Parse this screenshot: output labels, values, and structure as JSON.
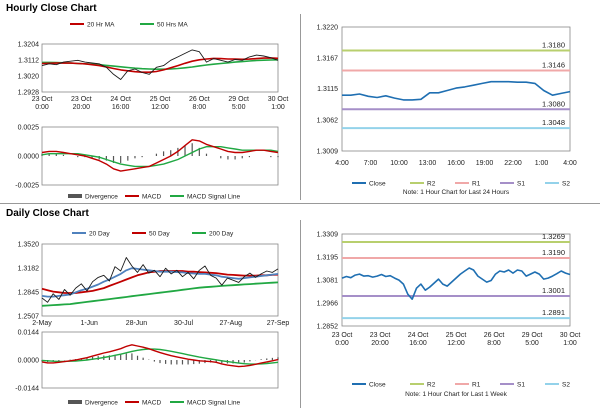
{
  "sections": {
    "hourly_title": "Hourly Close Chart",
    "daily_title": "Daily Close Chart"
  },
  "colors": {
    "price": "#1a1a1a",
    "ma_short": "#c00000",
    "ma_long": "#21a843",
    "ma_mid_blue": "#4f81bd",
    "macd": "#c00000",
    "signal": "#21a843",
    "divergence": "#555555",
    "pivot_close": "#1f6fb2",
    "pivot_r2": "#b8cf6e",
    "pivot_r1": "#f0a8a8",
    "pivot_s1": "#a58fc8",
    "pivot_s2": "#93d2ea"
  },
  "chart_data": [
    {
      "id": "hourly-price",
      "type": "line",
      "legend": [
        "20 Hr MA",
        "50 Hrs MA"
      ],
      "y_ticks": [
        "1.3204",
        "1.3112",
        "1.3020",
        "1.2928"
      ],
      "ylim": [
        1.2928,
        1.3204
      ],
      "x_ticks": [
        [
          "23 Oct",
          "0:00"
        ],
        [
          "23 Oct",
          "20:00"
        ],
        [
          "24 Oct",
          "16:00"
        ],
        [
          "25 Oct",
          "12:00"
        ],
        [
          "26 Oct",
          "8:00"
        ],
        [
          "29 Oct",
          "5:00"
        ],
        [
          "30 Oct",
          "1:00"
        ]
      ],
      "series": [
        {
          "name": "Close",
          "values": [
            1.308,
            1.309,
            1.3085,
            1.31,
            1.3105,
            1.311,
            1.31,
            1.3095,
            1.309,
            1.307,
            1.303,
            1.3,
            1.305,
            1.306,
            1.304,
            1.303,
            1.307,
            1.308,
            1.311,
            1.313,
            1.315,
            1.317,
            1.316,
            1.31,
            1.312,
            1.311,
            1.31,
            1.3115,
            1.311,
            1.313,
            1.314,
            1.3135,
            1.3125,
            1.311
          ]
        },
        {
          "name": "20 Hr MA",
          "values": [
            1.3092,
            1.3093,
            1.3094,
            1.3095,
            1.3094,
            1.3092,
            1.309,
            1.3085,
            1.308,
            1.3072,
            1.3063,
            1.3055,
            1.305,
            1.3045,
            1.3042,
            1.3042,
            1.3046,
            1.3055,
            1.3067,
            1.308,
            1.3093,
            1.3105,
            1.3113,
            1.3118,
            1.3121,
            1.312,
            1.3118,
            1.3117,
            1.3116,
            1.3117,
            1.312,
            1.3123,
            1.3124,
            1.3122
          ]
        },
        {
          "name": "50 Hrs MA",
          "values": [
            1.3098,
            1.3098,
            1.3097,
            1.3096,
            1.3094,
            1.3092,
            1.309,
            1.3088,
            1.3085,
            1.3081,
            1.3077,
            1.3073,
            1.3069,
            1.3065,
            1.3062,
            1.306,
            1.3059,
            1.3059,
            1.306,
            1.3063,
            1.3067,
            1.3072,
            1.3078,
            1.3083,
            1.3088,
            1.3092,
            1.3096,
            1.31,
            1.3103,
            1.3106,
            1.3109,
            1.3111,
            1.3112,
            1.3113
          ]
        }
      ]
    },
    {
      "id": "hourly-macd",
      "type": "line",
      "y_ticks": [
        "0.0025",
        "0.0000",
        "-0.0025"
      ],
      "ylim": [
        -0.0025,
        0.0025
      ],
      "legend": [
        "Divergence",
        "MACD",
        "MACD Signal Line"
      ],
      "series": [
        {
          "name": "MACD",
          "values": [
            0.0003,
            0.0004,
            0.0004,
            0.0003,
            0.0002,
            0.0001,
            0.0,
            -0.0002,
            -0.0004,
            -0.0007,
            -0.0011,
            -0.0013,
            -0.0012,
            -0.0011,
            -0.001,
            -0.0009,
            -0.0006,
            -0.0003,
            0.0,
            0.0004,
            0.0009,
            0.0014,
            0.0013,
            0.001,
            0.0008,
            0.0006,
            0.0004,
            0.0003,
            0.0003,
            0.0004,
            0.0005,
            0.0005,
            0.0004,
            0.0003
          ]
        },
        {
          "name": "MACD Signal Line",
          "values": [
            0.0001,
            0.0002,
            0.0002,
            0.0002,
            0.0002,
            0.0002,
            0.0001,
            0.0,
            -0.0001,
            -0.0003,
            -0.0005,
            -0.0007,
            -0.0008,
            -0.0009,
            -0.0009,
            -0.0009,
            -0.0008,
            -0.0007,
            -0.0005,
            -0.0003,
            0.0,
            0.0003,
            0.0006,
            0.0008,
            0.0008,
            0.0008,
            0.0007,
            0.0006,
            0.0005,
            0.0005,
            0.0005,
            0.0005,
            0.0005,
            0.0004
          ]
        },
        {
          "name": "Divergence",
          "values": [
            0.0002,
            0.0002,
            0.0002,
            0.0001,
            0.0,
            -0.0001,
            -0.0001,
            -0.0002,
            -0.0003,
            -0.0004,
            -0.0006,
            -0.0006,
            -0.0004,
            -0.0002,
            -0.0001,
            0.0,
            0.0002,
            0.0004,
            0.0005,
            0.0007,
            0.0009,
            0.0011,
            0.0007,
            0.0002,
            0.0,
            -0.0002,
            -0.0003,
            -0.0003,
            -0.0002,
            -0.0001,
            0.0,
            0.0,
            -0.0001,
            -0.0001
          ]
        }
      ]
    },
    {
      "id": "hourly-pivot",
      "type": "line",
      "y_ticks": [
        "1.3220",
        "1.3167",
        "1.3115",
        "1.3062",
        "1.3009"
      ],
      "ylim": [
        1.3009,
        1.322
      ],
      "x_ticks": [
        "4:00",
        "7:00",
        "10:00",
        "13:00",
        "16:00",
        "19:00",
        "22:00",
        "1:00",
        "4:00"
      ],
      "levels": [
        {
          "name": "R2",
          "value": 1.318,
          "label": "1.3180"
        },
        {
          "name": "R1",
          "value": 1.3146,
          "label": "1.3146"
        },
        {
          "name": "S1",
          "value": 1.308,
          "label": "1.3080"
        },
        {
          "name": "S2",
          "value": 1.3048,
          "label": "1.3048"
        }
      ],
      "series": [
        {
          "name": "Close",
          "values": [
            1.3104,
            1.3104,
            1.3106,
            1.3102,
            1.31,
            1.3103,
            1.3099,
            1.3096,
            1.3096,
            1.3097,
            1.3108,
            1.3108,
            1.3112,
            1.3116,
            1.3118,
            1.3121,
            1.3124,
            1.3127,
            1.3127,
            1.3127,
            1.3126,
            1.3126,
            1.3124,
            1.3112,
            1.3104,
            1.3107,
            1.311
          ]
        }
      ],
      "legend": [
        "Close",
        "R2",
        "R1",
        "S1",
        "S2"
      ],
      "note": "Note: 1 Hour Chart for Last 24 Hours"
    },
    {
      "id": "daily-price",
      "type": "line",
      "legend": [
        "20 Day",
        "50 Day",
        "200 Day"
      ],
      "y_ticks": [
        "1.3520",
        "1.3182",
        "1.2845",
        "1.2507"
      ],
      "ylim": [
        1.2507,
        1.352
      ],
      "x_ticks": [
        "2-May",
        "1-Jun",
        "28-Jun",
        "30-Jul",
        "27-Aug",
        "27-Sep"
      ],
      "series": [
        {
          "name": "Close",
          "values": [
            1.276,
            1.27,
            1.282,
            1.274,
            1.288,
            1.28,
            1.29,
            1.296,
            1.286,
            1.299,
            1.305,
            1.308,
            1.3,
            1.32,
            1.314,
            1.333,
            1.321,
            1.312,
            1.323,
            1.311,
            1.315,
            1.306,
            1.318,
            1.31,
            1.315,
            1.306,
            1.312,
            1.303,
            1.315,
            1.321,
            1.308,
            1.304,
            1.294,
            1.304,
            1.301,
            1.298,
            1.306,
            1.311,
            1.305,
            1.31,
            1.314,
            1.312,
            1.317
          ]
        },
        {
          "name": "20 Day",
          "values": [
            1.279,
            1.278,
            1.278,
            1.279,
            1.28,
            1.281,
            1.284,
            1.287,
            1.289,
            1.292,
            1.295,
            1.299,
            1.302,
            1.306,
            1.31,
            1.315,
            1.318,
            1.317,
            1.316,
            1.315,
            1.314,
            1.313,
            1.313,
            1.313,
            1.3125,
            1.312,
            1.311,
            1.3105,
            1.31,
            1.31,
            1.309,
            1.308,
            1.306,
            1.305,
            1.304,
            1.303,
            1.304,
            1.305,
            1.306,
            1.307,
            1.308,
            1.309,
            1.31
          ]
        },
        {
          "name": "50 Day",
          "values": [
            1.289,
            1.287,
            1.285,
            1.284,
            1.283,
            1.283,
            1.283,
            1.284,
            1.285,
            1.286,
            1.288,
            1.29,
            1.293,
            1.296,
            1.299,
            1.302,
            1.305,
            1.308,
            1.31,
            1.312,
            1.313,
            1.314,
            1.314,
            1.314,
            1.314,
            1.314,
            1.313,
            1.313,
            1.3125,
            1.312,
            1.3115,
            1.311,
            1.31,
            1.309,
            1.3085,
            1.308,
            1.3075,
            1.3075,
            1.3075,
            1.308,
            1.308,
            1.3085,
            1.309
          ]
        },
        {
          "name": "200 Day",
          "values": [
            1.265,
            1.2655,
            1.266,
            1.2665,
            1.267,
            1.2675,
            1.2685,
            1.2695,
            1.2705,
            1.2715,
            1.2725,
            1.2735,
            1.2745,
            1.2755,
            1.2765,
            1.2775,
            1.2785,
            1.2795,
            1.2805,
            1.2815,
            1.2825,
            1.2835,
            1.2845,
            1.2855,
            1.2865,
            1.2875,
            1.2885,
            1.2895,
            1.2905,
            1.2912,
            1.2918,
            1.2924,
            1.293,
            1.2936,
            1.2941,
            1.2946,
            1.2951,
            1.2956,
            1.2961,
            1.2966,
            1.2971,
            1.2976,
            1.298
          ]
        }
      ]
    },
    {
      "id": "daily-macd",
      "type": "line",
      "y_ticks": [
        "0.0144",
        "0.0000",
        "-0.0144"
      ],
      "ylim": [
        -0.0144,
        0.0144
      ],
      "legend": [
        "Divergence",
        "MACD",
        "MACD Signal Line"
      ],
      "series": [
        {
          "name": "MACD",
          "values": [
            -0.001,
            -0.0015,
            -0.0015,
            -0.0012,
            -0.0008,
            -0.0004,
            0.0,
            0.0006,
            0.0012,
            0.002,
            0.0028,
            0.0036,
            0.0042,
            0.005,
            0.0058,
            0.007,
            0.0078,
            0.0072,
            0.0066,
            0.0058,
            0.0048,
            0.0038,
            0.003,
            0.0022,
            0.0016,
            0.001,
            0.0004,
            0.0,
            -0.0004,
            -0.0006,
            -0.0008,
            -0.0012,
            -0.002,
            -0.0026,
            -0.003,
            -0.0034,
            -0.0032,
            -0.0028,
            -0.0022,
            -0.0016,
            -0.001,
            -0.0004,
            0.0002
          ]
        },
        {
          "name": "MACD Signal Line",
          "values": [
            -0.0002,
            -0.0004,
            -0.0006,
            -0.0007,
            -0.0007,
            -0.0006,
            -0.0005,
            -0.0003,
            0.0,
            0.0004,
            0.0008,
            0.0013,
            0.0018,
            0.0024,
            0.003,
            0.0037,
            0.0044,
            0.005,
            0.0054,
            0.0056,
            0.0056,
            0.0054,
            0.005,
            0.0045,
            0.0039,
            0.0033,
            0.0027,
            0.0021,
            0.0015,
            0.001,
            0.0005,
            0.0001,
            -0.0004,
            -0.0008,
            -0.0012,
            -0.0016,
            -0.0019,
            -0.0021,
            -0.0021,
            -0.002,
            -0.0018,
            -0.0015,
            -0.0012
          ]
        },
        {
          "name": "Divergence",
          "values": [
            -0.0008,
            -0.0011,
            -0.0009,
            -0.0005,
            -0.0001,
            0.0002,
            0.0005,
            0.0009,
            0.0012,
            0.0016,
            0.002,
            0.0023,
            0.0024,
            0.0026,
            0.0028,
            0.0033,
            0.0034,
            0.0022,
            0.0012,
            0.0002,
            -0.0008,
            -0.0016,
            -0.002,
            -0.0023,
            -0.0023,
            -0.0023,
            -0.0023,
            -0.0021,
            -0.0019,
            -0.0016,
            -0.0013,
            -0.0013,
            -0.0016,
            -0.0018,
            -0.0018,
            -0.0018,
            -0.0013,
            -0.0007,
            -0.0001,
            0.0004,
            0.0008,
            0.0011,
            0.0014
          ]
        }
      ]
    },
    {
      "id": "daily-pivot",
      "type": "line",
      "y_ticks": [
        "1.3309",
        "1.3195",
        "1.3081",
        "1.2966",
        "1.2852"
      ],
      "ylim": [
        1.2852,
        1.3309
      ],
      "x_ticks": [
        [
          "23 Oct",
          "0:00"
        ],
        [
          "23 Oct",
          "20:00"
        ],
        [
          "24 Oct",
          "16:00"
        ],
        [
          "25 Oct",
          "12:00"
        ],
        [
          "26 Oct",
          "8:00"
        ],
        [
          "29 Oct",
          "5:00"
        ],
        [
          "30 Oct",
          "1:00"
        ]
      ],
      "levels": [
        {
          "name": "R2",
          "value": 1.3269,
          "label": "1.3269"
        },
        {
          "name": "R1",
          "value": 1.319,
          "label": "1.3190"
        },
        {
          "name": "S1",
          "value": 1.3001,
          "label": "1.3001"
        },
        {
          "name": "S2",
          "value": 1.2891,
          "label": "1.2891"
        }
      ],
      "series": [
        {
          "name": "Close",
          "values": [
            1.309,
            1.3098,
            1.3092,
            1.3105,
            1.311,
            1.31,
            1.3102,
            1.3095,
            1.31,
            1.3108,
            1.3098,
            1.3102,
            1.309,
            1.308,
            1.306,
            1.301,
            1.2985,
            1.304,
            1.306,
            1.303,
            1.3045,
            1.3065,
            1.3085,
            1.306,
            1.305,
            1.307,
            1.309,
            1.311,
            1.3125,
            1.314,
            1.313,
            1.31,
            1.3085,
            1.307,
            1.3078,
            1.311,
            1.3125,
            1.312,
            1.313,
            1.3115,
            1.313,
            1.3125,
            1.31,
            1.311,
            1.312,
            1.311,
            1.3085,
            1.309,
            1.31,
            1.3112,
            1.3125,
            1.3115,
            1.3108
          ]
        }
      ],
      "legend": [
        "Close",
        "R2",
        "R1",
        "S1",
        "S2"
      ],
      "note": "Note: 1 Hour Chart for Last 1 Week"
    }
  ]
}
